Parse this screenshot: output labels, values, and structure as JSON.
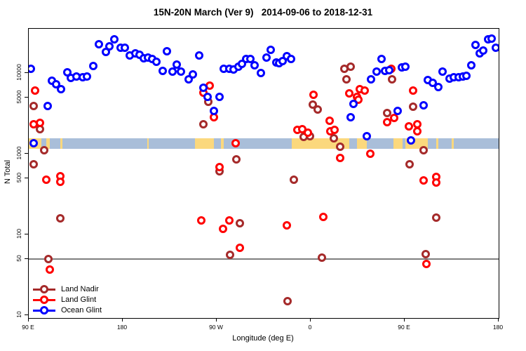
{
  "title": "15N-20N March (Ver 9)   2014-09-06 to 2018-12-31",
  "chart_data": {
    "type": "scatter",
    "title": "15N-20N March (Ver 9)   2014-09-06 to 2018-12-31",
    "xlabel": "Longitude (deg E)",
    "ylabel": "N Total",
    "background": "#FFFFFF",
    "x_axis": {
      "note": "longitude axis wraps eastward starting at 90E; values are unwrapped degrees 90-540",
      "domain": [
        90,
        540
      ],
      "ticks": [
        {
          "value": 90,
          "label": "90 E"
        },
        {
          "value": 180,
          "label": "180"
        },
        {
          "value": 270,
          "label": "90 W"
        },
        {
          "value": 360,
          "label": "0"
        },
        {
          "value": 450,
          "label": "90 E"
        },
        {
          "value": 540,
          "label": "180"
        }
      ]
    },
    "y_axis": {
      "scale": "log",
      "domain": [
        9.2,
        35000
      ],
      "ticks": [
        {
          "value": 10000,
          "label": "10000"
        },
        {
          "value": 5000,
          "label": "5000"
        },
        {
          "value": 1000,
          "label": "1000"
        },
        {
          "value": 500,
          "label": "500"
        },
        {
          "value": 100,
          "label": "100"
        },
        {
          "value": 50,
          "label": "50"
        },
        {
          "value": 10,
          "label": "10"
        }
      ]
    },
    "reference_line": {
      "n": 50,
      "color": "#7F7F7F"
    },
    "latitude_map_band": {
      "description": "map strip of the 15N-20N latitude band: ocean blue with land segments in yellow",
      "n_range": [
        1150,
        1560
      ],
      "ocean_color": "#A9BED9",
      "land_color": "#FBD87D",
      "land_segments_lon": [
        [
          90,
          102
        ],
        [
          107,
          110
        ],
        [
          120,
          122
        ],
        [
          203.5,
          205
        ],
        [
          249,
          267
        ],
        [
          274,
          277
        ],
        [
          342,
          397
        ],
        [
          404,
          414
        ],
        [
          439,
          448
        ],
        [
          451,
          472
        ],
        [
          480,
          482
        ],
        [
          495,
          497
        ]
      ]
    },
    "legend": {
      "position": "bottom-left"
    },
    "series": [
      {
        "name": "Land Nadir",
        "color": "#A52A2A",
        "points": [
          [
            95,
            3900
          ],
          [
            101,
            2010
          ],
          [
            105,
            1100
          ],
          [
            95,
            741
          ],
          [
            120,
            158
          ],
          [
            109,
            50
          ],
          [
            262,
            4400
          ],
          [
            257,
            2320
          ],
          [
            289,
            851
          ],
          [
            273,
            607
          ],
          [
            292,
            138
          ],
          [
            283,
            56
          ],
          [
            362,
            4060
          ],
          [
            367,
            3530
          ],
          [
            353,
            1620
          ],
          [
            359,
            1650
          ],
          [
            382,
            1550
          ],
          [
            388,
            1220
          ],
          [
            344,
            476
          ],
          [
            371,
            52
          ],
          [
            338,
            15
          ],
          [
            392,
            11300
          ],
          [
            398,
            12000
          ],
          [
            394,
            8350
          ],
          [
            438,
            8350
          ],
          [
            433,
            3190
          ],
          [
            458,
            3830
          ],
          [
            455,
            741
          ],
          [
            468,
            1100
          ],
          [
            480,
            162
          ],
          [
            470,
            57
          ]
        ]
      },
      {
        "name": "Land Glint",
        "color": "#FF0000",
        "points": [
          [
            96,
            6070
          ],
          [
            95,
            2320
          ],
          [
            101,
            2410
          ],
          [
            107,
            476
          ],
          [
            120,
            527
          ],
          [
            120,
            449
          ],
          [
            110,
            37
          ],
          [
            263,
            6970
          ],
          [
            257,
            5710
          ],
          [
            267,
            2830
          ],
          [
            288,
            1350
          ],
          [
            273,
            684
          ],
          [
            255,
            149
          ],
          [
            282,
            149
          ],
          [
            276,
            117
          ],
          [
            292,
            68
          ],
          [
            363,
            5370
          ],
          [
            347,
            1980
          ],
          [
            352,
            2010
          ],
          [
            357,
            1820
          ],
          [
            379,
            1900
          ],
          [
            383,
            1980
          ],
          [
            378,
            2560
          ],
          [
            388,
            887
          ],
          [
            397,
            5600
          ],
          [
            404,
            5060
          ],
          [
            406,
            4680
          ],
          [
            407,
            6310
          ],
          [
            412,
            6070
          ],
          [
            417,
            1000
          ],
          [
            372,
            165
          ],
          [
            337,
            130
          ],
          [
            437,
            11300
          ],
          [
            458,
            6070
          ],
          [
            440,
            2770
          ],
          [
            433,
            2460
          ],
          [
            454,
            2180
          ],
          [
            462,
            2320
          ],
          [
            462,
            1900
          ],
          [
            468,
            468
          ],
          [
            480,
            517
          ],
          [
            480,
            440
          ],
          [
            471,
            43
          ]
        ]
      },
      {
        "name": "Ocean Glint",
        "color": "#0000FF",
        "points": [
          [
            92,
            11300
          ],
          [
            157,
            22700
          ],
          [
            164,
            18200
          ],
          [
            152,
            12200
          ],
          [
            127,
            10200
          ],
          [
            130,
            8690
          ],
          [
            136,
            9050
          ],
          [
            142,
            8870
          ],
          [
            146,
            9050
          ],
          [
            112,
            8020
          ],
          [
            116,
            7260
          ],
          [
            121,
            6310
          ],
          [
            108,
            3900
          ],
          [
            95,
            1350
          ],
          [
            172,
            26100
          ],
          [
            167,
            21400
          ],
          [
            178,
            20600
          ],
          [
            182,
            20600
          ],
          [
            187,
            16500
          ],
          [
            192,
            17500
          ],
          [
            196,
            16800
          ],
          [
            200,
            15200
          ],
          [
            204,
            15500
          ],
          [
            208,
            14900
          ],
          [
            212,
            13800
          ],
          [
            222,
            18600
          ],
          [
            218,
            10600
          ],
          [
            228,
            10400
          ],
          [
            232,
            12700
          ],
          [
            236,
            10400
          ],
          [
            243,
            8350
          ],
          [
            247,
            9600
          ],
          [
            253,
            16500
          ],
          [
            277,
            11300
          ],
          [
            282,
            11300
          ],
          [
            286,
            11000
          ],
          [
            291,
            12000
          ],
          [
            294,
            13000
          ],
          [
            298,
            14900
          ],
          [
            302,
            14900
          ],
          [
            306,
            12500
          ],
          [
            312,
            10000
          ],
          [
            322,
            19400
          ],
          [
            318,
            15500
          ],
          [
            327,
            13500
          ],
          [
            257,
            6570
          ],
          [
            261,
            5060
          ],
          [
            273,
            5060
          ],
          [
            267,
            3390
          ],
          [
            330,
            13200
          ],
          [
            333,
            14100
          ],
          [
            337,
            16200
          ],
          [
            341,
            14900
          ],
          [
            401,
            4140
          ],
          [
            398,
            2830
          ],
          [
            414,
            1650
          ],
          [
            428,
            14900
          ],
          [
            423,
            10400
          ],
          [
            418,
            8350
          ],
          [
            431,
            10600
          ],
          [
            435,
            10800
          ],
          [
            447,
            11700
          ],
          [
            451,
            12000
          ],
          [
            472,
            8190
          ],
          [
            477,
            7550
          ],
          [
            482,
            6700
          ],
          [
            486,
            10400
          ],
          [
            443,
            3390
          ],
          [
            468,
            3980
          ],
          [
            456,
            1460
          ],
          [
            493,
            8520
          ],
          [
            497,
            8870
          ],
          [
            502,
            8870
          ],
          [
            506,
            9050
          ],
          [
            509,
            9230
          ],
          [
            514,
            12500
          ],
          [
            518,
            22300
          ],
          [
            522,
            17500
          ],
          [
            525,
            19000
          ],
          [
            530,
            26100
          ],
          [
            533,
            26600
          ],
          [
            537,
            20600
          ]
        ]
      }
    ]
  }
}
